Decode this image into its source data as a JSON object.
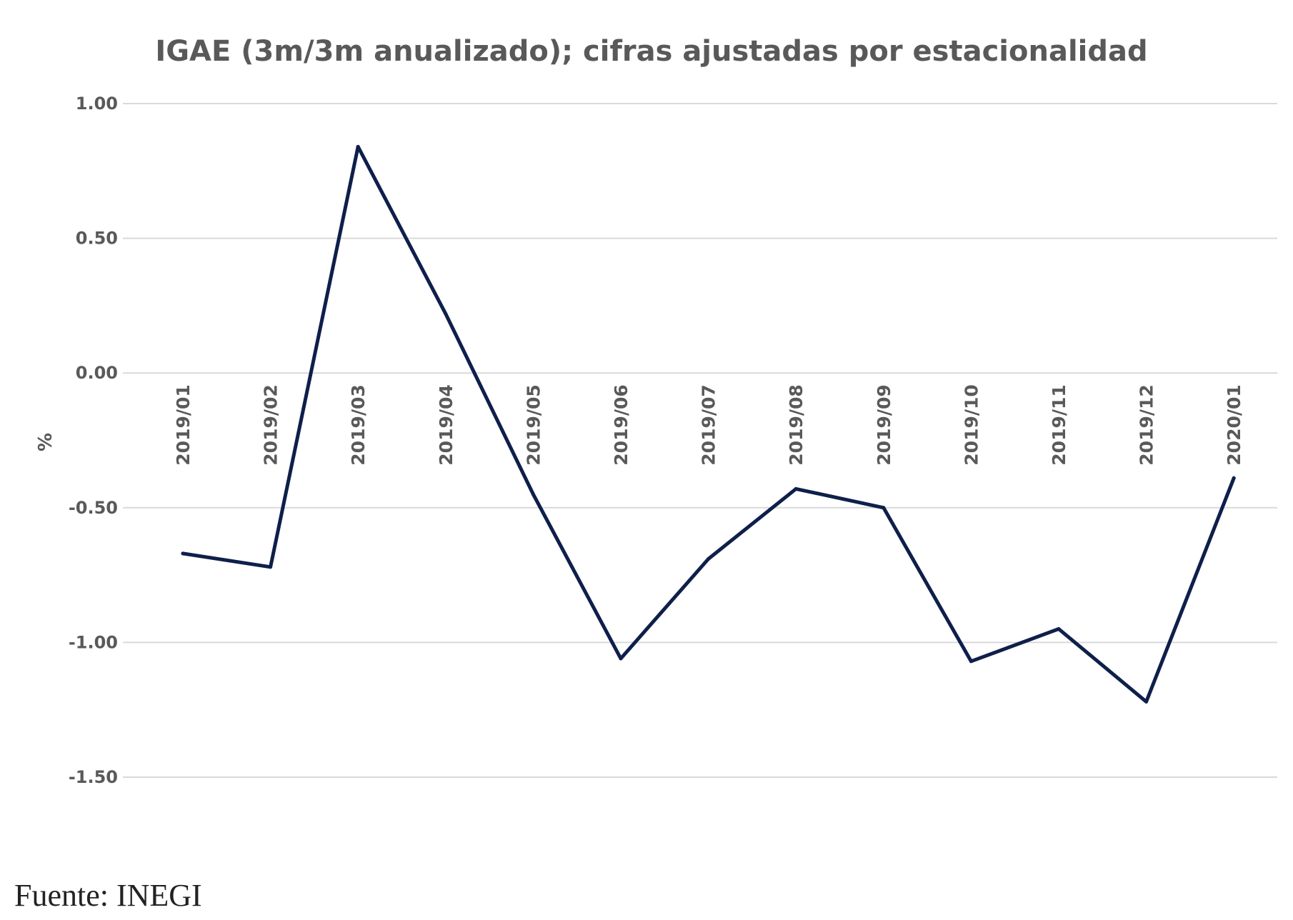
{
  "chart_data": {
    "type": "line",
    "title": "IGAE (3m/3m anualizado); cifras ajustadas por estacionalidad",
    "xlabel": "",
    "ylabel": "%",
    "categories": [
      "2019/01",
      "2019/02",
      "2019/03",
      "2019/04",
      "2019/05",
      "2019/06",
      "2019/07",
      "2019/08",
      "2019/09",
      "2019/10",
      "2019/11",
      "2019/12",
      "2020/01"
    ],
    "series": [
      {
        "values": [
          -0.67,
          -0.72,
          0.84,
          0.22,
          -0.45,
          -1.06,
          -0.69,
          -0.43,
          -0.5,
          -1.07,
          -0.95,
          -1.22,
          -0.39
        ]
      }
    ],
    "ylim": [
      -1.5,
      1.0
    ],
    "yticks": [
      "1.00",
      "0.50",
      "0.00",
      "-0.50",
      "-1.00",
      "-1.50"
    ],
    "ytick_values": [
      1.0,
      0.5,
      0.0,
      -0.5,
      -1.0,
      -1.5
    ],
    "grid": true,
    "legend": "none",
    "line_color": "#0f1f4b",
    "grid_color": "#d9d9d9",
    "text_color": "#595959"
  },
  "source": "Fuente: INEGI"
}
